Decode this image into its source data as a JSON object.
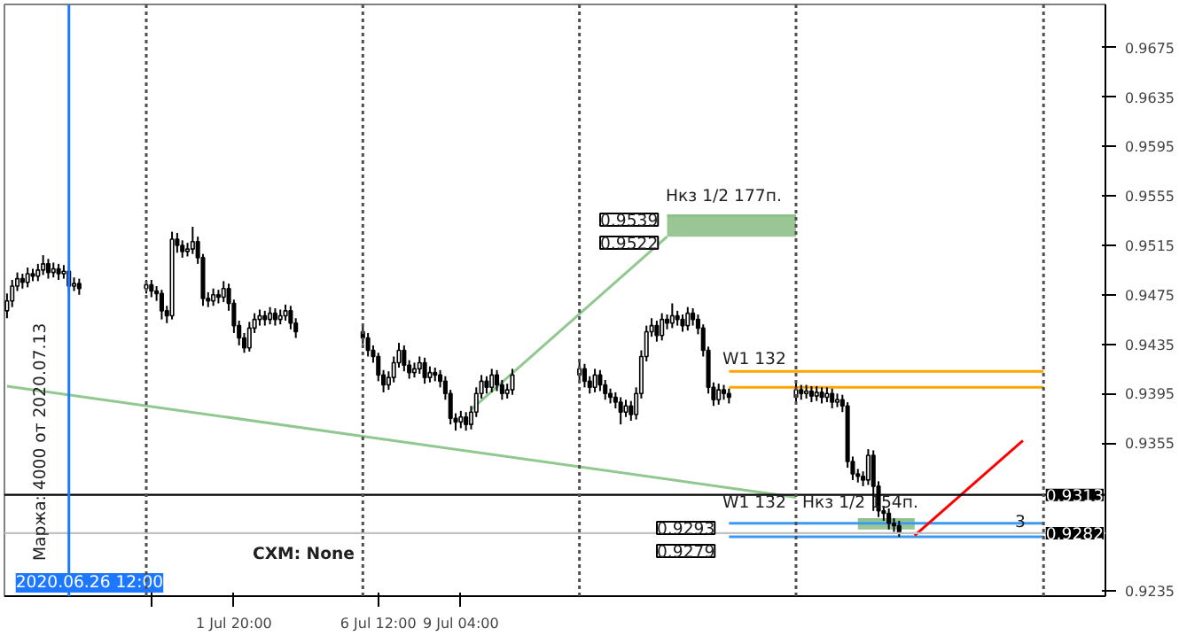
{
  "chart_data": {
    "type": "candlestick",
    "color": "#000000",
    "x": [
      "2020-06-24T12:00",
      "2020-06-24T16:00",
      "2020-06-24T20:00",
      "2020-06-25T00:00",
      "2020-06-25T04:00",
      "2020-06-25T08:00",
      "2020-06-25T12:00",
      "2020-06-25T16:00",
      "2020-06-25T20:00",
      "2020-06-26T00:00",
      "2020-06-26T04:00",
      "2020-06-26T08:00",
      "2020-06-26T12:00",
      "2020-06-26T16:00",
      "2020-06-26T20:00",
      "2020-06-29T00:00",
      "2020-06-29T04:00",
      "2020-06-29T08:00",
      "2020-06-29T12:00",
      "2020-06-29T16:00",
      "2020-06-29T20:00",
      "2020-06-30T00:00",
      "2020-06-30T04:00",
      "2020-06-30T08:00",
      "2020-06-30T12:00",
      "2020-06-30T16:00",
      "2020-06-30T20:00",
      "2020-07-01T00:00",
      "2020-07-01T04:00",
      "2020-07-01T08:00",
      "2020-07-01T12:00",
      "2020-07-01T16:00",
      "2020-07-01T20:00",
      "2020-07-02T00:00",
      "2020-07-02T04:00",
      "2020-07-02T08:00",
      "2020-07-02T12:00",
      "2020-07-02T16:00",
      "2020-07-02T20:00",
      "2020-07-03T00:00",
      "2020-07-03T04:00",
      "2020-07-03T08:00",
      "2020-07-03T12:00",
      "2020-07-03T16:00",
      "2020-07-03T20:00",
      "2020-07-06T00:00",
      "2020-07-06T04:00",
      "2020-07-06T08:00",
      "2020-07-06T12:00",
      "2020-07-06T16:00",
      "2020-07-06T20:00",
      "2020-07-07T00:00",
      "2020-07-07T04:00",
      "2020-07-07T08:00",
      "2020-07-07T12:00",
      "2020-07-07T16:00",
      "2020-07-07T20:00",
      "2020-07-08T00:00",
      "2020-07-08T04:00",
      "2020-07-08T08:00",
      "2020-07-08T12:00",
      "2020-07-08T16:00",
      "2020-07-08T20:00",
      "2020-07-09T00:00",
      "2020-07-09T04:00",
      "2020-07-09T08:00",
      "2020-07-09T12:00",
      "2020-07-09T16:00",
      "2020-07-09T20:00",
      "2020-07-10T00:00",
      "2020-07-10T04:00",
      "2020-07-10T08:00",
      "2020-07-10T12:00",
      "2020-07-10T16:00",
      "2020-07-10T20:00",
      "2020-07-13T00:00",
      "2020-07-13T04:00",
      "2020-07-13T08:00",
      "2020-07-13T12:00",
      "2020-07-13T16:00",
      "2020-07-13T20:00",
      "2020-07-14T00:00",
      "2020-07-14T04:00",
      "2020-07-14T08:00",
      "2020-07-14T12:00",
      "2020-07-14T16:00",
      "2020-07-14T20:00",
      "2020-07-15T00:00",
      "2020-07-15T04:00",
      "2020-07-15T08:00",
      "2020-07-15T12:00",
      "2020-07-15T16:00",
      "2020-07-15T20:00",
      "2020-07-16T00:00",
      "2020-07-16T04:00",
      "2020-07-16T08:00",
      "2020-07-16T12:00",
      "2020-07-16T16:00",
      "2020-07-16T20:00",
      "2020-07-17T00:00",
      "2020-07-17T04:00",
      "2020-07-17T08:00",
      "2020-07-17T12:00",
      "2020-07-17T16:00",
      "2020-07-17T20:00",
      "2020-07-20T00:00",
      "2020-07-20T04:00",
      "2020-07-20T08:00",
      "2020-07-20T12:00",
      "2020-07-20T16:00",
      "2020-07-20T20:00",
      "2020-07-21T00:00",
      "2020-07-21T04:00",
      "2020-07-21T08:00",
      "2020-07-21T12:00",
      "2020-07-21T16:00",
      "2020-07-21T20:00",
      "2020-07-22T00:00",
      "2020-07-22T04:00",
      "2020-07-22T08:00",
      "2020-07-22T12:00",
      "2020-07-22T16:00",
      "2020-07-22T20:00",
      "2020-07-23T00:00",
      "2020-07-23T04:00",
      "2020-07-23T08:00"
    ],
    "ohlc": [
      [
        0.9462,
        0.9476,
        0.9456,
        0.947
      ],
      [
        0.947,
        0.9487,
        0.9465,
        0.9482
      ],
      [
        0.9482,
        0.9493,
        0.9478,
        0.9488
      ],
      [
        0.9488,
        0.9492,
        0.948,
        0.9485
      ],
      [
        0.9485,
        0.9497,
        0.9481,
        0.9492
      ],
      [
        0.9492,
        0.9496,
        0.9486,
        0.949
      ],
      [
        0.949,
        0.95,
        0.9486,
        0.9495
      ],
      [
        0.9495,
        0.9507,
        0.9491,
        0.95
      ],
      [
        0.95,
        0.9504,
        0.9488,
        0.9493
      ],
      [
        0.9493,
        0.9501,
        0.9489,
        0.9496
      ],
      [
        0.9496,
        0.95,
        0.9487,
        0.9492
      ],
      [
        0.9492,
        0.9499,
        0.9488,
        0.9494
      ],
      [
        0.9494,
        0.9498,
        0.9477,
        0.9482
      ],
      [
        0.9482,
        0.9489,
        0.9478,
        0.9484
      ],
      [
        0.9484,
        0.9488,
        0.9475,
        0.948
      ],
      [
        0.948,
        0.9487,
        0.9476,
        0.9483
      ],
      [
        0.9483,
        0.9487,
        0.9473,
        0.9478
      ],
      [
        0.9478,
        0.9482,
        0.947,
        0.9476
      ],
      [
        0.9476,
        0.9479,
        0.9455,
        0.9462
      ],
      [
        0.9462,
        0.9466,
        0.9452,
        0.9458
      ],
      [
        0.9458,
        0.9526,
        0.9455,
        0.952
      ],
      [
        0.952,
        0.9525,
        0.9509,
        0.9515
      ],
      [
        0.9515,
        0.9519,
        0.9505,
        0.951
      ],
      [
        0.951,
        0.9517,
        0.9506,
        0.9512
      ],
      [
        0.9512,
        0.953,
        0.9508,
        0.9518
      ],
      [
        0.9518,
        0.9522,
        0.95,
        0.9505
      ],
      [
        0.9505,
        0.9508,
        0.9466,
        0.9472
      ],
      [
        0.9472,
        0.9477,
        0.9465,
        0.947
      ],
      [
        0.947,
        0.948,
        0.9466,
        0.9475
      ],
      [
        0.9475,
        0.9479,
        0.9468,
        0.9473
      ],
      [
        0.9473,
        0.9486,
        0.9469,
        0.948
      ],
      [
        0.948,
        0.9484,
        0.9462,
        0.9468
      ],
      [
        0.9468,
        0.9471,
        0.9444,
        0.945
      ],
      [
        0.945,
        0.9454,
        0.9434,
        0.944
      ],
      [
        0.944,
        0.9444,
        0.9428,
        0.9432
      ],
      [
        0.9432,
        0.9453,
        0.9429,
        0.9448
      ],
      [
        0.9448,
        0.946,
        0.9444,
        0.9455
      ],
      [
        0.9455,
        0.9463,
        0.945,
        0.9458
      ],
      [
        0.9458,
        0.9462,
        0.945,
        0.9455
      ],
      [
        0.9455,
        0.9465,
        0.9451,
        0.946
      ],
      [
        0.946,
        0.9464,
        0.945,
        0.9455
      ],
      [
        0.9455,
        0.9463,
        0.9451,
        0.9458
      ],
      [
        0.9458,
        0.9467,
        0.9454,
        0.9462
      ],
      [
        0.9462,
        0.9466,
        0.9447,
        0.9452
      ],
      [
        0.9452,
        0.9456,
        0.944,
        0.9445
      ],
      [
        0.9445,
        0.9449,
        0.9435,
        0.944
      ],
      [
        0.944,
        0.9444,
        0.9425,
        0.943
      ],
      [
        0.943,
        0.9434,
        0.942,
        0.9425
      ],
      [
        0.9425,
        0.9428,
        0.9405,
        0.941
      ],
      [
        0.941,
        0.9414,
        0.9396,
        0.9402
      ],
      [
        0.9402,
        0.9413,
        0.9398,
        0.9408
      ],
      [
        0.9408,
        0.9425,
        0.9404,
        0.942
      ],
      [
        0.942,
        0.9436,
        0.9416,
        0.943
      ],
      [
        0.943,
        0.9434,
        0.9413,
        0.9418
      ],
      [
        0.9418,
        0.9422,
        0.9407,
        0.9412
      ],
      [
        0.9412,
        0.942,
        0.9408,
        0.9415
      ],
      [
        0.9415,
        0.9425,
        0.9411,
        0.942
      ],
      [
        0.942,
        0.9424,
        0.9403,
        0.9408
      ],
      [
        0.9408,
        0.9417,
        0.9404,
        0.9412
      ],
      [
        0.9412,
        0.9416,
        0.9405,
        0.941
      ],
      [
        0.941,
        0.9414,
        0.94,
        0.9405
      ],
      [
        0.9405,
        0.9409,
        0.939,
        0.9395
      ],
      [
        0.9395,
        0.9398,
        0.937,
        0.9375
      ],
      [
        0.9375,
        0.9379,
        0.9365,
        0.9372
      ],
      [
        0.9372,
        0.9381,
        0.9367,
        0.9376
      ],
      [
        0.9376,
        0.938,
        0.9365,
        0.937
      ],
      [
        0.937,
        0.9385,
        0.9366,
        0.938
      ],
      [
        0.938,
        0.94,
        0.9376,
        0.9395
      ],
      [
        0.9395,
        0.941,
        0.9391,
        0.9405
      ],
      [
        0.9405,
        0.9409,
        0.9395,
        0.94
      ],
      [
        0.94,
        0.9415,
        0.9396,
        0.941
      ],
      [
        0.941,
        0.9414,
        0.9397,
        0.9402
      ],
      [
        0.9402,
        0.9406,
        0.939,
        0.9395
      ],
      [
        0.9395,
        0.9403,
        0.9391,
        0.9398
      ],
      [
        0.9398,
        0.9415,
        0.9394,
        0.941
      ],
      [
        0.941,
        0.9422,
        0.9406,
        0.9415
      ],
      [
        0.9415,
        0.9419,
        0.94,
        0.9405
      ],
      [
        0.9405,
        0.9409,
        0.9395,
        0.94
      ],
      [
        0.94,
        0.9415,
        0.9396,
        0.941
      ],
      [
        0.941,
        0.9414,
        0.9397,
        0.9402
      ],
      [
        0.9402,
        0.9406,
        0.939,
        0.9395
      ],
      [
        0.9395,
        0.9399,
        0.9387,
        0.9392
      ],
      [
        0.9392,
        0.9396,
        0.9383,
        0.9388
      ],
      [
        0.9388,
        0.9392,
        0.937,
        0.938
      ],
      [
        0.938,
        0.939,
        0.9376,
        0.9385
      ],
      [
        0.9385,
        0.9389,
        0.9373,
        0.9378
      ],
      [
        0.9378,
        0.94,
        0.9374,
        0.9395
      ],
      [
        0.9395,
        0.943,
        0.9391,
        0.9425
      ],
      [
        0.9425,
        0.945,
        0.9421,
        0.9445
      ],
      [
        0.9445,
        0.9456,
        0.9441,
        0.945
      ],
      [
        0.945,
        0.9454,
        0.9437,
        0.9442
      ],
      [
        0.9442,
        0.946,
        0.9438,
        0.9455
      ],
      [
        0.9455,
        0.9459,
        0.9447,
        0.9452
      ],
      [
        0.9452,
        0.9468,
        0.9448,
        0.9458
      ],
      [
        0.9458,
        0.9462,
        0.945,
        0.9455
      ],
      [
        0.9455,
        0.9459,
        0.9445,
        0.945
      ],
      [
        0.945,
        0.9465,
        0.9446,
        0.946
      ],
      [
        0.946,
        0.9464,
        0.945,
        0.9455
      ],
      [
        0.9455,
        0.9459,
        0.9443,
        0.9448
      ],
      [
        0.9448,
        0.9451,
        0.9425,
        0.943
      ],
      [
        0.943,
        0.9433,
        0.9395,
        0.94
      ],
      [
        0.94,
        0.9404,
        0.9385,
        0.939
      ],
      [
        0.939,
        0.9403,
        0.9386,
        0.9398
      ],
      [
        0.9398,
        0.9402,
        0.939,
        0.9395
      ],
      [
        0.9395,
        0.9399,
        0.9387,
        0.9392
      ],
      [
        0.9392,
        0.9405,
        0.9388,
        0.9398
      ],
      [
        0.9398,
        0.9402,
        0.939,
        0.9395
      ],
      [
        0.9395,
        0.9402,
        0.9391,
        0.9397
      ],
      [
        0.9397,
        0.9401,
        0.9388,
        0.9393
      ],
      [
        0.9393,
        0.9401,
        0.9389,
        0.9396
      ],
      [
        0.9396,
        0.94,
        0.9387,
        0.9392
      ],
      [
        0.9392,
        0.94,
        0.9388,
        0.9395
      ],
      [
        0.9395,
        0.9399,
        0.9383,
        0.9388
      ],
      [
        0.9388,
        0.9395,
        0.9384,
        0.939
      ],
      [
        0.939,
        0.9394,
        0.938,
        0.9385
      ],
      [
        0.9385,
        0.9388,
        0.9335,
        0.934
      ],
      [
        0.934,
        0.9344,
        0.9325,
        0.933
      ],
      [
        0.933,
        0.9334,
        0.9323,
        0.9328
      ],
      [
        0.9328,
        0.9332,
        0.932,
        0.9325
      ],
      [
        0.9325,
        0.935,
        0.9321,
        0.9345
      ],
      [
        0.9345,
        0.9349,
        0.93,
        0.932
      ],
      [
        0.932,
        0.9324,
        0.9295,
        0.93
      ],
      [
        0.93,
        0.9304,
        0.9292,
        0.9298
      ],
      [
        0.9298,
        0.9302,
        0.9285,
        0.929
      ],
      [
        0.929,
        0.9294,
        0.9283,
        0.9288
      ],
      [
        0.9288,
        0.9292,
        0.9279,
        0.9282
      ]
    ],
    "series": [
      {
        "type": "line",
        "x": [
          "2020-06-24T12:00",
          "2020-07-20T00:00"
        ],
        "values": [
          0.9401,
          0.9311
        ],
        "color": "#90c890"
      },
      {
        "type": "line",
        "x": [
          "2020-07-09T12:00",
          "2020-07-15T20:00"
        ],
        "values": [
          0.9382,
          0.9522
        ],
        "color": "#90c890"
      },
      {
        "type": "line",
        "x": [
          "2020-07-15T20:00",
          "2020-07-20T00:00"
        ],
        "values": [
          0.9539,
          0.9539
        ],
        "lower": [
          0.9522,
          0.9522
        ],
        "upper": [
          0.9539,
          0.9539
        ],
        "color": "#8fbf8a"
      },
      {
        "type": "line",
        "x": [
          "2020-07-22T00:00",
          "2020-07-23T20:00"
        ],
        "values": [
          0.9293,
          0.9293
        ],
        "lower": [
          0.9285,
          0.9285
        ],
        "upper": [
          0.9293,
          0.9293
        ],
        "color": "#8fbf8a"
      },
      {
        "type": "line",
        "x": [
          "2020-07-17T20:00",
          "2020-07-28T00:00"
        ],
        "values": [
          0.9413,
          0.9413
        ],
        "color": "#ffa500"
      },
      {
        "type": "line",
        "x": [
          "2020-07-17T20:00",
          "2020-07-28T00:00"
        ],
        "values": [
          0.94,
          0.94
        ],
        "color": "#ffa500"
      },
      {
        "type": "line",
        "x": [
          "2020-07-17T20:00",
          "2020-07-28T00:00"
        ],
        "values": [
          0.929,
          0.929
        ],
        "color": "#3c9bf0"
      },
      {
        "type": "line",
        "x": [
          "2020-07-17T20:00",
          "2020-07-28T00:00"
        ],
        "values": [
          0.9279,
          0.9279
        ],
        "color": "#3c9bf0"
      },
      {
        "type": "line",
        "x": [
          "2020-07-23T20:00",
          "2020-07-27T08:00"
        ],
        "values": [
          0.928,
          0.9357
        ],
        "color": "#ff0000"
      }
    ],
    "xlim": [
      "2020-06-24T10:00",
      "2020-07-30T00:00"
    ],
    "ylim": [
      0.9231,
      0.971
    ],
    "xticks": [
      {
        "value": "2020-06-29T04:00",
        "label": null
      },
      {
        "value": "2020-07-01T20:00",
        "label": "1 Jul 20:00"
      },
      {
        "value": "2020-07-06T12:00",
        "label": "6 Jul 12:00"
      },
      {
        "value": "2020-07-09T04:00",
        "label": "9 Jul 04:00"
      }
    ],
    "yticks": [
      0.9235,
      0.9355,
      0.9395,
      0.9435,
      0.9475,
      0.9515,
      0.9555,
      0.9595,
      0.9635,
      0.9675
    ],
    "grid": false,
    "ref_lines": [
      {
        "axis": "y",
        "value": 0.9313,
        "label": "0.9313",
        "color": "#000000"
      },
      {
        "axis": "y",
        "value": 0.9282,
        "label": "0.9282",
        "color": "#c0c0c0"
      },
      {
        "axis": "x",
        "value": "2020-06-26T12:00",
        "label": "2020.06.26 12:00",
        "color": "#1e78ff"
      },
      {
        "axis": "x",
        "value": "2020-06-29T00:00",
        "color": "#505050",
        "line_style": "dotted"
      },
      {
        "axis": "x",
        "value": "2020-07-06T00:00",
        "color": "#505050",
        "line_style": "dotted"
      },
      {
        "axis": "x",
        "value": "2020-07-13T00:00",
        "color": "#505050",
        "line_style": "dotted"
      },
      {
        "axis": "x",
        "value": "2020-07-20T00:00",
        "color": "#505050",
        "line_style": "dotted"
      },
      {
        "axis": "x",
        "value": "2020-07-28T00:00",
        "color": "#505050",
        "line_style": "dotted"
      }
    ],
    "annotations": [
      "Маржа: 4000  от  2020.07.13",
      "CXM: None",
      "0.9539",
      "0.9522",
      "Нкз 1/2  177п.",
      "3",
      "W1 132",
      "W1 132",
      "Нкз 1/2     154п.",
      "0.9293",
      "0.9279"
    ]
  }
}
